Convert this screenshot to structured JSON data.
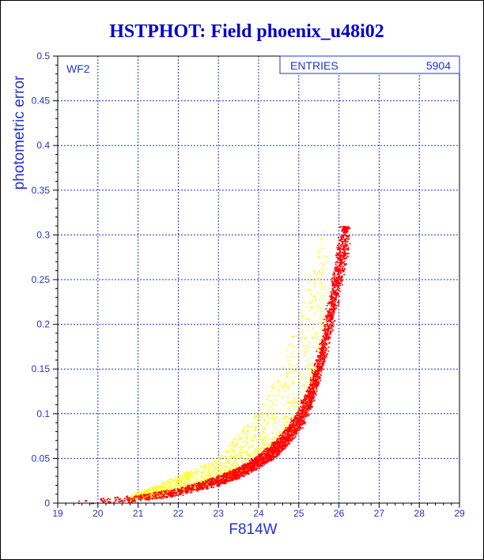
{
  "chart_data": {
    "type": "scatter",
    "title": "HSTPHOT: Field phoenix_u48i02",
    "xlabel": "F814W",
    "ylabel": "photometric error",
    "xlim": [
      19,
      29
    ],
    "ylim": [
      0,
      0.5
    ],
    "xticks": [
      "19",
      "20",
      "21",
      "22",
      "23",
      "24",
      "25",
      "26",
      "27",
      "28",
      "29"
    ],
    "yticks": [
      "0",
      "0.05",
      "0.1",
      "0.15",
      "0.2",
      "0.25",
      "0.3",
      "0.35",
      "0.4",
      "0.45",
      "0.5"
    ],
    "grid": true,
    "annotation": "WF2",
    "stats_box": {
      "label": "ENTRIES",
      "value": "5904"
    },
    "colors": {
      "text": "#2233cc",
      "title": "#0000cc",
      "grid": "#2233cc",
      "main_points": "#ee0000",
      "secondary_points": "#ffff00"
    },
    "series": [
      {
        "color": "#ff0000",
        "envelope": [
          {
            "x": 19.2,
            "y": 0.001
          },
          {
            "x": 20.0,
            "y": 0.002
          },
          {
            "x": 21.0,
            "y": 0.005
          },
          {
            "x": 22.0,
            "y": 0.012
          },
          {
            "x": 23.0,
            "y": 0.024
          },
          {
            "x": 23.5,
            "y": 0.033
          },
          {
            "x": 24.0,
            "y": 0.045
          },
          {
            "x": 24.5,
            "y": 0.062
          },
          {
            "x": 25.0,
            "y": 0.09
          },
          {
            "x": 25.3,
            "y": 0.12
          },
          {
            "x": 25.6,
            "y": 0.17
          },
          {
            "x": 25.8,
            "y": 0.21
          },
          {
            "x": 26.0,
            "y": 0.26
          },
          {
            "x": 26.2,
            "y": 0.305
          }
        ]
      },
      {
        "color": "#ffff00",
        "envelope": [
          {
            "x": 21.0,
            "y": 0.012
          },
          {
            "x": 22.0,
            "y": 0.03
          },
          {
            "x": 23.0,
            "y": 0.05
          },
          {
            "x": 23.5,
            "y": 0.075
          },
          {
            "x": 24.0,
            "y": 0.1
          },
          {
            "x": 24.5,
            "y": 0.14
          },
          {
            "x": 25.0,
            "y": 0.2
          },
          {
            "x": 25.3,
            "y": 0.25
          },
          {
            "x": 25.6,
            "y": 0.3
          }
        ]
      }
    ]
  }
}
